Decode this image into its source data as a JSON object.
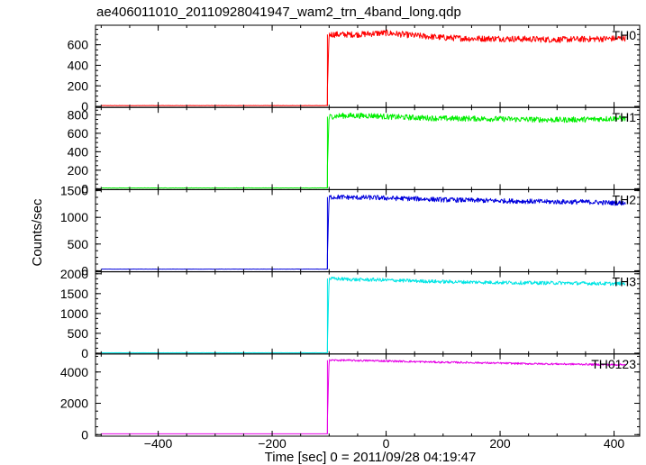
{
  "chart_data": {
    "type": "line",
    "title": "ae406011010_20110928041947_wam2_trn_4band_long.qdp",
    "xlabel": "Time [sec] 0 = 2011/09/28 04:19:47",
    "ylabel": "Counts/sec",
    "xlim": [
      -510,
      445
    ],
    "x_ticks": [
      -400,
      -200,
      0,
      200,
      400
    ],
    "x_tick_labels": [
      "−400",
      "−200",
      "0",
      "200",
      "400"
    ],
    "grid": false,
    "step_time": -103,
    "panels": [
      {
        "name": "TH0",
        "color": "#ff0000",
        "ylim": [
          -10,
          790
        ],
        "y_ticks": [
          0,
          200,
          400,
          600
        ],
        "y_tick_labels": [
          "0",
          "200",
          "400",
          "600"
        ],
        "segments": [
          {
            "x": [
              -500,
              -103
            ],
            "y": [
              8,
              8
            ]
          },
          {
            "x": [
              -103,
              -100,
              -80,
              -50,
              -20,
              0,
              50,
              100,
              150,
              200,
              250,
              300,
              350,
              400,
              420
            ],
            "y": [
              180,
              700,
              700,
              700,
              710,
              715,
              690,
              670,
              660,
              660,
              655,
              650,
              655,
              660,
              665
            ]
          }
        ],
        "noise": 30
      },
      {
        "name": "TH1",
        "color": "#00ee00",
        "ylim": [
          -10,
          880
        ],
        "y_ticks": [
          0,
          200,
          400,
          600,
          800
        ],
        "y_tick_labels": [
          "0",
          "200",
          "400",
          "600",
          "800"
        ],
        "segments": [
          {
            "x": [
              -500,
              -103
            ],
            "y": [
              8,
              8
            ]
          },
          {
            "x": [
              -103,
              -100,
              -80,
              -50,
              -20,
              0,
              50,
              100,
              150,
              200,
              250,
              300,
              350,
              400,
              420
            ],
            "y": [
              250,
              780,
              790,
              790,
              790,
              780,
              770,
              760,
              760,
              755,
              750,
              745,
              750,
              760,
              760
            ]
          }
        ],
        "noise": 30
      },
      {
        "name": "TH2",
        "color": "#0000dd",
        "ylim": [
          -20,
          1520
        ],
        "y_ticks": [
          0,
          500,
          1000,
          1500
        ],
        "y_tick_labels": [
          "0",
          "500",
          "1000",
          "1500"
        ],
        "segments": [
          {
            "x": [
              -500,
              -103
            ],
            "y": [
              30,
              30
            ]
          },
          {
            "x": [
              -103,
              -100,
              -80,
              -50,
              -20,
              0,
              50,
              100,
              150,
              200,
              250,
              300,
              350,
              400,
              420
            ],
            "y": [
              300,
              1380,
              1380,
              1370,
              1370,
              1360,
              1350,
              1330,
              1320,
              1310,
              1300,
              1290,
              1290,
              1270,
              1270
            ]
          }
        ],
        "noise": 45
      },
      {
        "name": "TH3",
        "color": "#00e5e5",
        "ylim": [
          -20,
          2050
        ],
        "y_ticks": [
          0,
          500,
          1000,
          1500,
          2000
        ],
        "y_tick_labels": [
          "0",
          "500",
          "1000",
          "1500",
          "2000"
        ],
        "segments": [
          {
            "x": [
              -500,
              -103
            ],
            "y": [
              10,
              10
            ]
          },
          {
            "x": [
              -103,
              -100,
              -80,
              -50,
              -20,
              0,
              50,
              100,
              150,
              200,
              250,
              300,
              350,
              400,
              420
            ],
            "y": [
              250,
              1880,
              1870,
              1850,
              1850,
              1840,
              1820,
              1800,
              1790,
              1780,
              1770,
              1770,
              1760,
              1750,
              1760
            ]
          }
        ],
        "noise": 45
      },
      {
        "name": "TH0123",
        "color": "#e600e6",
        "ylim": [
          -100,
          5150
        ],
        "y_ticks": [
          0,
          2000,
          4000
        ],
        "y_tick_labels": [
          "0",
          "2000",
          "4000"
        ],
        "segments": [
          {
            "x": [
              -500,
              -103
            ],
            "y": [
              50,
              50
            ]
          },
          {
            "x": [
              -103,
              -100,
              -80,
              -50,
              -20,
              0,
              50,
              100,
              150,
              200,
              250,
              300,
              350,
              400,
              420
            ],
            "y": [
              1000,
              4750,
              4750,
              4730,
              4720,
              4700,
              4660,
              4620,
              4600,
              4560,
              4530,
              4510,
              4490,
              4460,
              4480
            ]
          }
        ],
        "noise": 60
      }
    ]
  }
}
